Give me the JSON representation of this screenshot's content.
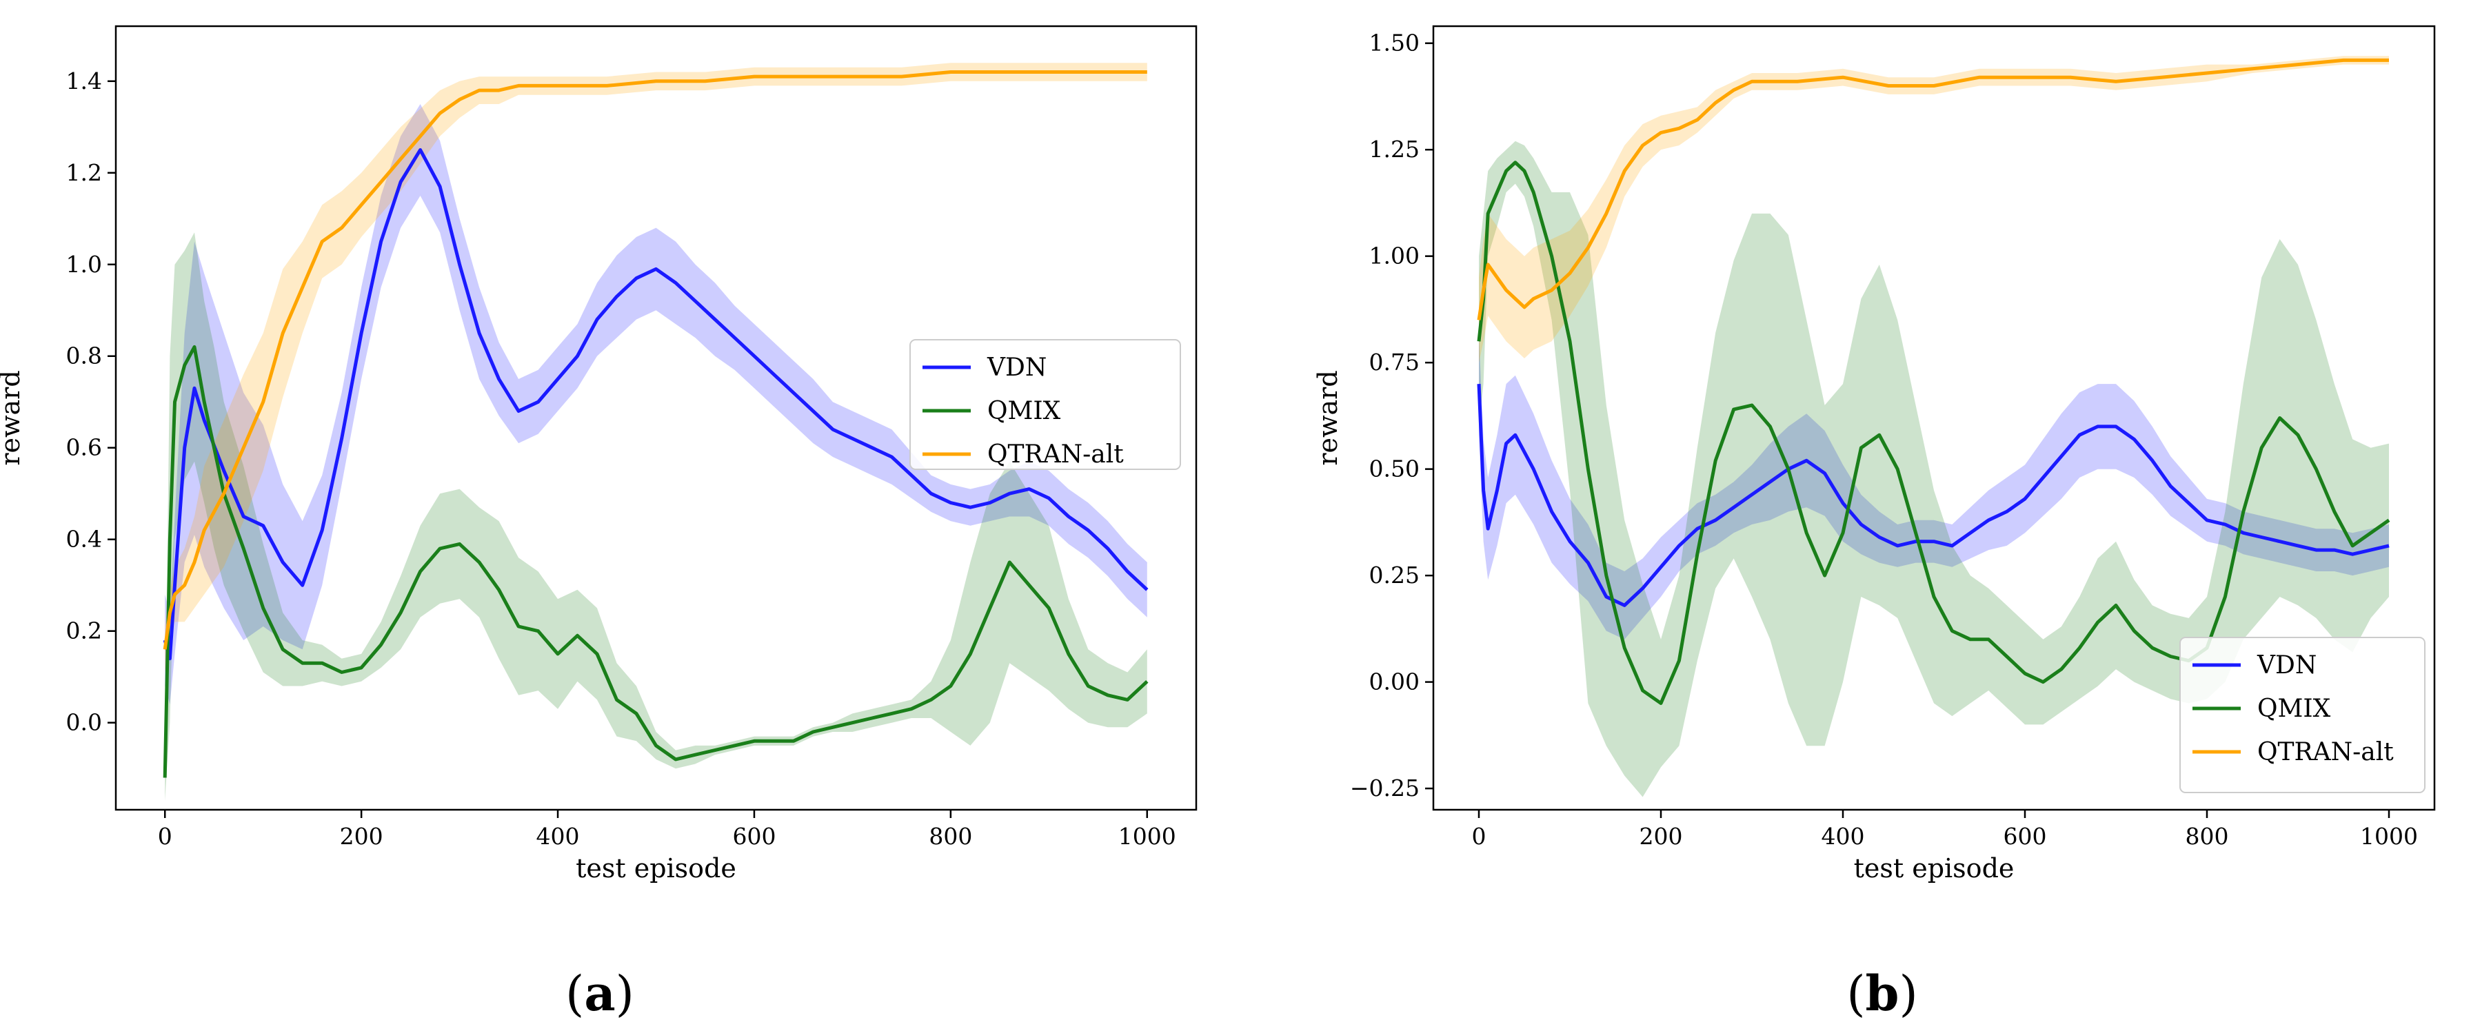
{
  "captions": [
    {
      "open": "(",
      "letter": "a",
      "close": ")"
    },
    {
      "open": "(",
      "letter": "b",
      "close": ")"
    }
  ],
  "colors": {
    "VDN": "#1a1aff",
    "QMIX": "#1a7f1a",
    "QTRAN-alt": "#ffa500"
  },
  "chart_data": [
    {
      "type": "line",
      "xlabel": "test episode",
      "ylabel": "reward",
      "xlim": [
        -50,
        1050
      ],
      "ylim": [
        -0.19,
        1.52
      ],
      "xticks": [
        0,
        200,
        400,
        600,
        800,
        1000
      ],
      "yticks": [
        0.0,
        0.2,
        0.4,
        0.6,
        0.8,
        1.0,
        1.2,
        1.4
      ],
      "ytick_labels": [
        "0.0",
        "0.2",
        "0.4",
        "0.6",
        "0.8",
        "1.0",
        "1.2",
        "1.4"
      ],
      "grid": false,
      "legend_placement": "center-right",
      "series": [
        {
          "name": "VDN",
          "color": "#1a1aff",
          "x": [
            0,
            5,
            10,
            20,
            30,
            40,
            60,
            80,
            100,
            120,
            140,
            160,
            180,
            200,
            220,
            240,
            260,
            280,
            300,
            320,
            340,
            360,
            380,
            400,
            420,
            440,
            460,
            480,
            500,
            520,
            540,
            560,
            580,
            600,
            620,
            640,
            660,
            680,
            700,
            720,
            740,
            760,
            780,
            800,
            820,
            840,
            860,
            880,
            900,
            920,
            940,
            960,
            980,
            1000
          ],
          "y": [
            0.18,
            0.14,
            0.3,
            0.6,
            0.73,
            0.66,
            0.55,
            0.45,
            0.43,
            0.35,
            0.3,
            0.42,
            0.62,
            0.85,
            1.05,
            1.18,
            1.25,
            1.17,
            1.0,
            0.85,
            0.75,
            0.68,
            0.7,
            0.75,
            0.8,
            0.88,
            0.93,
            0.97,
            0.99,
            0.96,
            0.92,
            0.88,
            0.84,
            0.8,
            0.76,
            0.72,
            0.68,
            0.64,
            0.62,
            0.6,
            0.58,
            0.54,
            0.5,
            0.48,
            0.47,
            0.48,
            0.5,
            0.51,
            0.49,
            0.45,
            0.42,
            0.38,
            0.33,
            0.29
          ],
          "spread": [
            0.1,
            0.1,
            0.15,
            0.25,
            0.32,
            0.32,
            0.3,
            0.27,
            0.22,
            0.17,
            0.14,
            0.12,
            0.1,
            0.1,
            0.1,
            0.1,
            0.1,
            0.1,
            0.1,
            0.1,
            0.08,
            0.07,
            0.07,
            0.07,
            0.07,
            0.08,
            0.09,
            0.09,
            0.09,
            0.09,
            0.08,
            0.08,
            0.07,
            0.07,
            0.07,
            0.07,
            0.07,
            0.06,
            0.06,
            0.06,
            0.06,
            0.05,
            0.04,
            0.04,
            0.04,
            0.04,
            0.05,
            0.06,
            0.06,
            0.06,
            0.06,
            0.06,
            0.06,
            0.06
          ]
        },
        {
          "name": "QMIX",
          "color": "#1a7f1a",
          "x": [
            0,
            5,
            10,
            20,
            30,
            40,
            50,
            60,
            80,
            100,
            120,
            140,
            160,
            180,
            200,
            220,
            240,
            260,
            280,
            300,
            320,
            340,
            360,
            380,
            400,
            420,
            440,
            460,
            480,
            500,
            520,
            540,
            560,
            580,
            600,
            620,
            640,
            660,
            680,
            700,
            720,
            740,
            760,
            780,
            800,
            820,
            840,
            860,
            880,
            900,
            920,
            940,
            960,
            980,
            1000
          ],
          "y": [
            -0.12,
            0.4,
            0.7,
            0.78,
            0.82,
            0.7,
            0.6,
            0.5,
            0.38,
            0.25,
            0.16,
            0.13,
            0.13,
            0.11,
            0.12,
            0.17,
            0.24,
            0.33,
            0.38,
            0.39,
            0.35,
            0.29,
            0.21,
            0.2,
            0.15,
            0.19,
            0.15,
            0.05,
            0.02,
            -0.05,
            -0.08,
            -0.07,
            -0.06,
            -0.05,
            -0.04,
            -0.04,
            -0.04,
            -0.02,
            -0.01,
            0.0,
            0.01,
            0.02,
            0.03,
            0.05,
            0.08,
            0.15,
            0.25,
            0.35,
            0.3,
            0.25,
            0.15,
            0.08,
            0.06,
            0.05,
            0.09
          ],
          "spread": [
            0.05,
            0.4,
            0.3,
            0.25,
            0.25,
            0.22,
            0.22,
            0.2,
            0.18,
            0.14,
            0.08,
            0.05,
            0.04,
            0.03,
            0.03,
            0.05,
            0.08,
            0.1,
            0.12,
            0.12,
            0.12,
            0.15,
            0.15,
            0.13,
            0.12,
            0.1,
            0.1,
            0.08,
            0.06,
            0.03,
            0.02,
            0.02,
            0.01,
            0.01,
            0.01,
            0.01,
            0.01,
            0.01,
            0.01,
            0.02,
            0.02,
            0.02,
            0.02,
            0.04,
            0.1,
            0.2,
            0.25,
            0.22,
            0.2,
            0.18,
            0.12,
            0.08,
            0.07,
            0.06,
            0.07
          ]
        },
        {
          "name": "QTRAN-alt",
          "color": "#ffa500",
          "x": [
            0,
            5,
            10,
            20,
            30,
            40,
            60,
            80,
            100,
            120,
            140,
            160,
            180,
            200,
            220,
            240,
            260,
            280,
            300,
            320,
            340,
            360,
            380,
            400,
            450,
            500,
            550,
            600,
            650,
            700,
            750,
            800,
            850,
            900,
            950,
            1000
          ],
          "y": [
            0.16,
            0.24,
            0.28,
            0.3,
            0.35,
            0.42,
            0.5,
            0.6,
            0.7,
            0.85,
            0.95,
            1.05,
            1.08,
            1.13,
            1.18,
            1.23,
            1.28,
            1.33,
            1.36,
            1.38,
            1.38,
            1.39,
            1.39,
            1.39,
            1.39,
            1.4,
            1.4,
            1.41,
            1.41,
            1.41,
            1.41,
            1.42,
            1.42,
            1.42,
            1.42,
            1.42
          ],
          "spread": [
            0.05,
            0.05,
            0.06,
            0.08,
            0.1,
            0.14,
            0.16,
            0.16,
            0.15,
            0.14,
            0.1,
            0.08,
            0.08,
            0.07,
            0.07,
            0.07,
            0.06,
            0.05,
            0.04,
            0.03,
            0.03,
            0.02,
            0.02,
            0.02,
            0.02,
            0.02,
            0.02,
            0.02,
            0.02,
            0.02,
            0.02,
            0.02,
            0.02,
            0.02,
            0.02,
            0.02
          ]
        }
      ]
    },
    {
      "type": "line",
      "xlabel": "test episode",
      "ylabel": "reward",
      "xlim": [
        -50,
        1050
      ],
      "ylim": [
        -0.3,
        1.54
      ],
      "xticks": [
        0,
        200,
        400,
        600,
        800,
        1000
      ],
      "yticks": [
        -0.25,
        0.0,
        0.25,
        0.5,
        0.75,
        1.0,
        1.25,
        1.5
      ],
      "ytick_labels": [
        "−0.25",
        "0.00",
        "0.25",
        "0.50",
        "0.75",
        "1.00",
        "1.25",
        "1.50"
      ],
      "grid": false,
      "legend_placement": "lower-right",
      "series": [
        {
          "name": "VDN",
          "color": "#1a1aff",
          "x": [
            0,
            5,
            10,
            20,
            30,
            40,
            60,
            80,
            100,
            120,
            140,
            160,
            180,
            200,
            220,
            240,
            260,
            280,
            300,
            320,
            340,
            360,
            380,
            400,
            420,
            440,
            460,
            480,
            500,
            520,
            540,
            560,
            580,
            600,
            620,
            640,
            660,
            680,
            700,
            720,
            740,
            760,
            780,
            800,
            820,
            840,
            860,
            880,
            900,
            920,
            940,
            960,
            980,
            1000
          ],
          "y": [
            0.7,
            0.45,
            0.36,
            0.45,
            0.56,
            0.58,
            0.5,
            0.4,
            0.33,
            0.28,
            0.2,
            0.18,
            0.22,
            0.27,
            0.32,
            0.36,
            0.38,
            0.41,
            0.44,
            0.47,
            0.5,
            0.52,
            0.49,
            0.42,
            0.37,
            0.34,
            0.32,
            0.33,
            0.33,
            0.32,
            0.35,
            0.38,
            0.4,
            0.43,
            0.48,
            0.53,
            0.58,
            0.6,
            0.6,
            0.57,
            0.52,
            0.46,
            0.42,
            0.38,
            0.37,
            0.35,
            0.34,
            0.33,
            0.32,
            0.31,
            0.31,
            0.3,
            0.31,
            0.32
          ],
          "spread": [
            0.12,
            0.12,
            0.12,
            0.13,
            0.14,
            0.14,
            0.13,
            0.12,
            0.1,
            0.09,
            0.08,
            0.08,
            0.07,
            0.07,
            0.06,
            0.06,
            0.06,
            0.06,
            0.07,
            0.09,
            0.1,
            0.11,
            0.1,
            0.09,
            0.07,
            0.06,
            0.05,
            0.05,
            0.05,
            0.05,
            0.06,
            0.07,
            0.08,
            0.08,
            0.09,
            0.1,
            0.1,
            0.1,
            0.1,
            0.09,
            0.08,
            0.07,
            0.06,
            0.05,
            0.05,
            0.05,
            0.05,
            0.05,
            0.05,
            0.05,
            0.05,
            0.05,
            0.05,
            0.05
          ]
        },
        {
          "name": "QMIX",
          "color": "#1a7f1a",
          "x": [
            0,
            5,
            10,
            20,
            30,
            40,
            50,
            60,
            80,
            100,
            120,
            140,
            160,
            180,
            200,
            220,
            240,
            260,
            280,
            300,
            320,
            340,
            360,
            380,
            400,
            420,
            440,
            460,
            480,
            500,
            520,
            540,
            560,
            580,
            600,
            620,
            640,
            660,
            680,
            700,
            720,
            740,
            760,
            780,
            800,
            820,
            840,
            860,
            880,
            900,
            920,
            940,
            960,
            980,
            1000
          ],
          "y": [
            0.8,
            0.9,
            1.1,
            1.15,
            1.2,
            1.22,
            1.2,
            1.15,
            1.0,
            0.8,
            0.5,
            0.25,
            0.08,
            -0.02,
            -0.05,
            0.05,
            0.3,
            0.52,
            0.64,
            0.65,
            0.6,
            0.5,
            0.35,
            0.25,
            0.35,
            0.55,
            0.58,
            0.5,
            0.35,
            0.2,
            0.12,
            0.1,
            0.1,
            0.06,
            0.02,
            0.0,
            0.03,
            0.08,
            0.14,
            0.18,
            0.12,
            0.08,
            0.06,
            0.05,
            0.08,
            0.2,
            0.4,
            0.55,
            0.62,
            0.58,
            0.5,
            0.4,
            0.32,
            0.35,
            0.38
          ],
          "spread": [
            0.2,
            0.2,
            0.1,
            0.08,
            0.05,
            0.05,
            0.06,
            0.08,
            0.15,
            0.35,
            0.55,
            0.4,
            0.3,
            0.25,
            0.15,
            0.2,
            0.25,
            0.3,
            0.35,
            0.45,
            0.5,
            0.55,
            0.5,
            0.4,
            0.35,
            0.35,
            0.4,
            0.35,
            0.3,
            0.25,
            0.2,
            0.15,
            0.12,
            0.12,
            0.12,
            0.1,
            0.1,
            0.12,
            0.15,
            0.15,
            0.12,
            0.1,
            0.1,
            0.1,
            0.12,
            0.2,
            0.3,
            0.4,
            0.42,
            0.4,
            0.35,
            0.3,
            0.25,
            0.2,
            0.18
          ]
        },
        {
          "name": "QTRAN-alt",
          "color": "#ffa500",
          "x": [
            0,
            5,
            10,
            20,
            30,
            40,
            50,
            60,
            80,
            100,
            120,
            140,
            160,
            180,
            200,
            220,
            240,
            260,
            280,
            300,
            350,
            400,
            450,
            500,
            550,
            600,
            650,
            700,
            750,
            800,
            850,
            900,
            950,
            1000
          ],
          "y": [
            0.85,
            0.92,
            0.98,
            0.95,
            0.92,
            0.9,
            0.88,
            0.9,
            0.92,
            0.96,
            1.02,
            1.1,
            1.2,
            1.26,
            1.29,
            1.3,
            1.32,
            1.36,
            1.39,
            1.41,
            1.41,
            1.42,
            1.4,
            1.4,
            1.42,
            1.42,
            1.42,
            1.41,
            1.42,
            1.43,
            1.44,
            1.45,
            1.46,
            1.46
          ],
          "spread": [
            0.1,
            0.12,
            0.12,
            0.12,
            0.12,
            0.12,
            0.12,
            0.12,
            0.12,
            0.1,
            0.09,
            0.08,
            0.06,
            0.05,
            0.04,
            0.04,
            0.03,
            0.03,
            0.02,
            0.02,
            0.02,
            0.02,
            0.02,
            0.02,
            0.02,
            0.02,
            0.02,
            0.02,
            0.02,
            0.02,
            0.01,
            0.01,
            0.01,
            0.01
          ]
        }
      ]
    }
  ]
}
